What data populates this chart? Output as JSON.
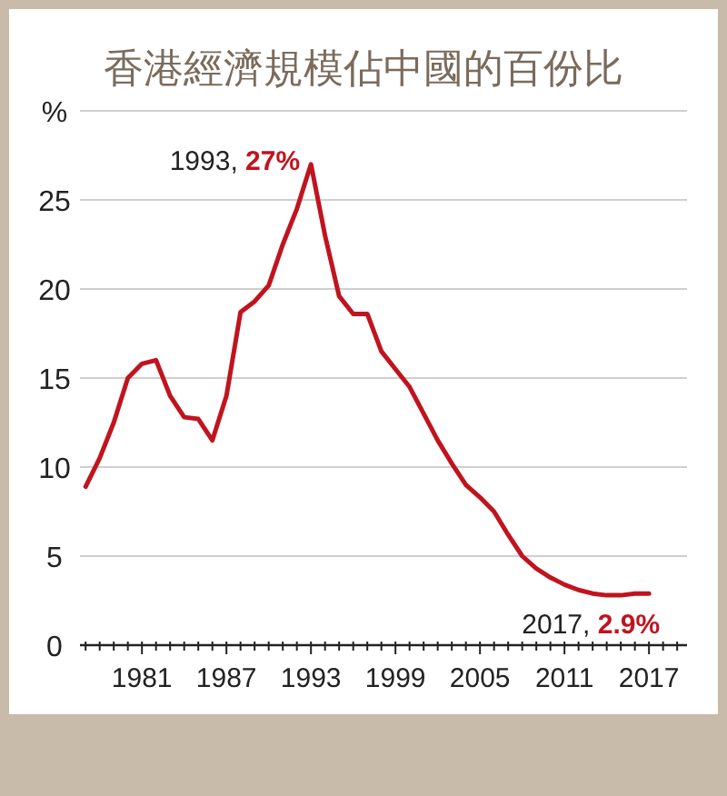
{
  "chart_data": {
    "type": "line",
    "title": "香港經濟規模佔中國的百份比",
    "x": [
      1977,
      1978,
      1979,
      1980,
      1981,
      1982,
      1983,
      1984,
      1985,
      1986,
      1987,
      1988,
      1989,
      1990,
      1991,
      1992,
      1993,
      1994,
      1995,
      1996,
      1997,
      1998,
      1999,
      2000,
      2001,
      2002,
      2003,
      2004,
      2005,
      2006,
      2007,
      2008,
      2009,
      2010,
      2011,
      2012,
      2013,
      2014,
      2015,
      2016,
      2017
    ],
    "series": [
      {
        "color": "#c0141e",
        "values": [
          8.9,
          10.5,
          12.5,
          15,
          15.8,
          16,
          14,
          12.8,
          12.7,
          11.5,
          14,
          18.7,
          19.3,
          20.2,
          22.5,
          24.5,
          27,
          23,
          19.6,
          18.6,
          18.6,
          16.5,
          15.5,
          14.5,
          13,
          11.5,
          10.2,
          9,
          8.3,
          7.5,
          6.2,
          5,
          4.3,
          3.8,
          3.4,
          3.1,
          2.9,
          2.8,
          2.8,
          2.9,
          2.9
        ]
      }
    ],
    "xlim": [
      1976.6,
      2019.7
    ],
    "xticks": [
      {
        "value": 1977,
        "label": null
      },
      {
        "value": 1978,
        "label": null
      },
      {
        "value": 1979,
        "label": null
      },
      {
        "value": 1980,
        "label": null
      },
      1981,
      {
        "value": 1982,
        "label": null
      },
      {
        "value": 1983,
        "label": null
      },
      {
        "value": 1984,
        "label": null
      },
      {
        "value": 1985,
        "label": null
      },
      {
        "value": 1986,
        "label": null
      },
      1987,
      {
        "value": 1988,
        "label": null
      },
      {
        "value": 1989,
        "label": null
      },
      {
        "value": 1990,
        "label": null
      },
      {
        "value": 1991,
        "label": null
      },
      {
        "value": 1992,
        "label": null
      },
      1993,
      {
        "value": 1994,
        "label": null
      },
      {
        "value": 1995,
        "label": null
      },
      {
        "value": 1996,
        "label": null
      },
      {
        "value": 1997,
        "label": null
      },
      {
        "value": 1998,
        "label": null
      },
      1999,
      {
        "value": 2000,
        "label": null
      },
      {
        "value": 2001,
        "label": null
      },
      {
        "value": 2002,
        "label": null
      },
      {
        "value": 2003,
        "label": null
      },
      {
        "value": 2004,
        "label": null
      },
      2005,
      {
        "value": 2006,
        "label": null
      },
      {
        "value": 2007,
        "label": null
      },
      {
        "value": 2008,
        "label": null
      },
      {
        "value": 2009,
        "label": null
      },
      {
        "value": 2010,
        "label": null
      },
      2011,
      {
        "value": 2012,
        "label": null
      },
      {
        "value": 2013,
        "label": null
      },
      {
        "value": 2014,
        "label": null
      },
      {
        "value": 2015,
        "label": null
      },
      {
        "value": 2016,
        "label": null
      },
      2017,
      {
        "value": 2018,
        "label": null
      },
      {
        "value": 2019,
        "label": null
      }
    ],
    "ylim": [
      0,
      30
    ],
    "yticks": [
      0,
      5,
      10,
      15,
      20,
      25,
      {
        "value": 30,
        "label": "%"
      }
    ],
    "grid": "y",
    "line_style": "solid",
    "annotations": [
      {
        "text": "1993, 27%",
        "x": 1993,
        "y": 27
      },
      {
        "text": "2017, 2.9%",
        "x": 2017,
        "y": 2.9
      }
    ]
  }
}
